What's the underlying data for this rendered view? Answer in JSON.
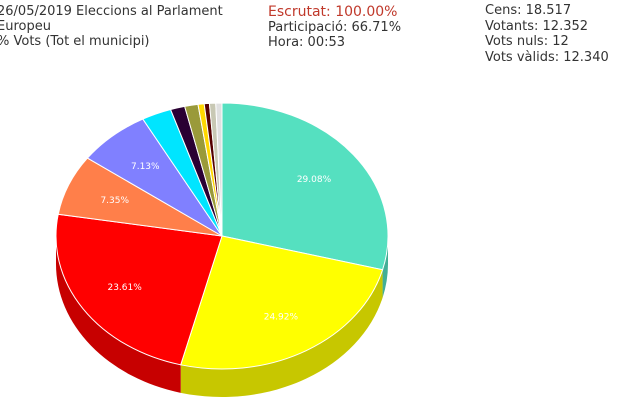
{
  "header": {
    "title_line1": "26/05/2019 Eleccions al Parlament",
    "title_line2": "Europeu",
    "title_line3": "% Vots (Tot el municipi)",
    "escrutat": "Escrutat: 100.00%",
    "participacio": "Participació: 66.71%",
    "hora": "Hora: 00:53",
    "cens": "Cens: 18.517",
    "votants": "Votants: 12.352",
    "vots_nuls": "Vots nuls: 12",
    "vots_valids": "Vots vàlids: 12.340"
  },
  "colors": {
    "header_red": "#c0392b",
    "header_text": "#333333"
  },
  "chart_data": {
    "type": "pie",
    "title": "",
    "style": "3d",
    "slices": [
      {
        "value": 29.08,
        "label": "29.08%",
        "color": "#55e0c0"
      },
      {
        "value": 24.92,
        "label": "24.92%",
        "color": "#ffff00"
      },
      {
        "value": 23.61,
        "label": "23.61%",
        "color": "#ff0000"
      },
      {
        "value": 7.35,
        "label": "7.35%",
        "color": "#ff7f4a"
      },
      {
        "value": 7.13,
        "label": "7.13%",
        "color": "#8080ff"
      },
      {
        "value": 2.9,
        "label": "",
        "color": "#00e5ff"
      },
      {
        "value": 1.4,
        "label": "",
        "color": "#2a0033"
      },
      {
        "value": 1.3,
        "label": "",
        "color": "#9a9a3a"
      },
      {
        "value": 0.6,
        "label": "",
        "color": "#ffd700"
      },
      {
        "value": 0.5,
        "label": "",
        "color": "#550000"
      },
      {
        "value": 0.61,
        "label": "",
        "color": "#c8c8b4"
      },
      {
        "value": 0.6,
        "label": "",
        "color": "#e0e0e0"
      }
    ]
  }
}
